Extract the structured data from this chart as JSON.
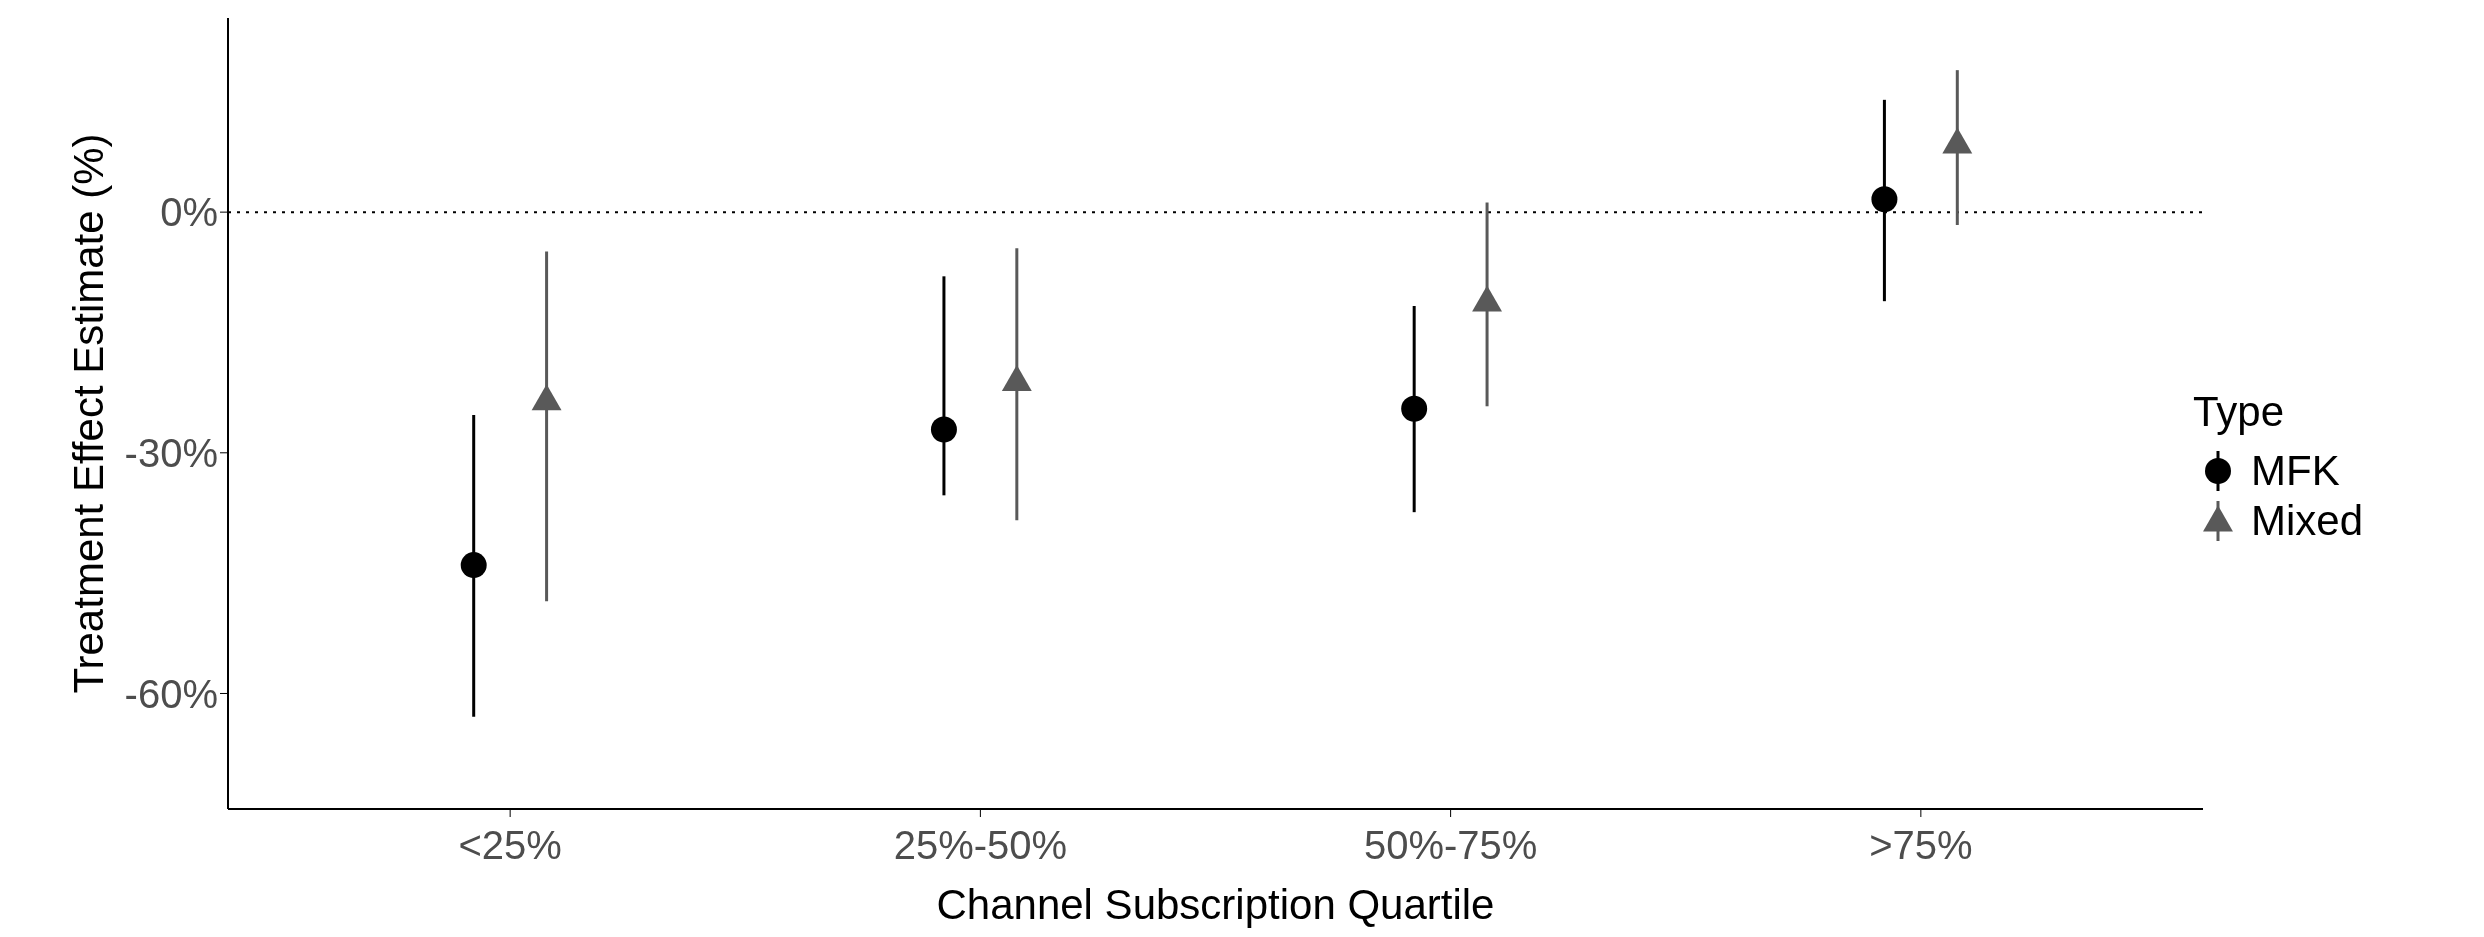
{
  "chart_data": {
    "type": "scatter",
    "xlabel": "Channel Subscription Quartile",
    "ylabel": "Treatment Effect Estimate (%)",
    "legend_title": "Type",
    "legend": "right",
    "categories": [
      "<25%",
      "25%-50%",
      "50%-75%",
      ">75%"
    ],
    "series": [
      {
        "name": "MFK",
        "color": "#000000",
        "marker": "circle",
        "values": [
          -44.0,
          -27.1,
          -24.5,
          1.6
        ],
        "errors": [
          [
            -62.9,
            -25.3
          ],
          [
            -35.3,
            -8.0
          ],
          [
            -37.4,
            -11.7
          ],
          [
            -11.1,
            14.0
          ]
        ]
      },
      {
        "name": "Mixed",
        "color": "#595959",
        "marker": "triangle",
        "values": [
          -23.4,
          -21.0,
          -11.1,
          8.6
        ],
        "errors": [
          [
            -48.5,
            -4.9
          ],
          [
            -38.4,
            -4.5
          ],
          [
            -24.2,
            1.2
          ],
          [
            -1.6,
            17.7
          ]
        ]
      }
    ],
    "ylim": [
      -74.4,
      24.2
    ],
    "yticks": [
      {
        "value": 0,
        "label": "0%"
      },
      {
        "value": -30,
        "label": "-30%"
      },
      {
        "value": -60,
        "label": "-60%"
      }
    ],
    "ref_lines": [
      {
        "axis": "y",
        "value": 0,
        "line_style": "dotted",
        "color": "#000000"
      }
    ]
  }
}
